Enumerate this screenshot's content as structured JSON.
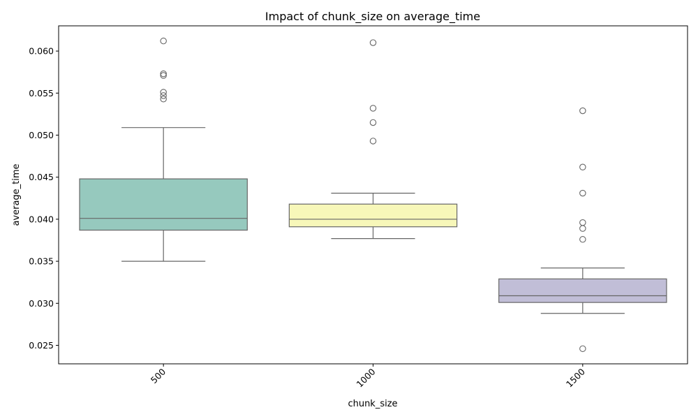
{
  "chart_data": {
    "type": "box",
    "title": "Impact of chunk_size on average_time",
    "xlabel": "chunk_size",
    "ylabel": "average_time",
    "ylim": [
      0.0228,
      0.063
    ],
    "yticks": [
      0.025,
      0.03,
      0.035,
      0.04,
      0.045,
      0.05,
      0.055,
      0.06
    ],
    "ytick_labels": [
      "0.025",
      "0.030",
      "0.035",
      "0.040",
      "0.045",
      "0.050",
      "0.055",
      "0.060"
    ],
    "grid": false,
    "categories": [
      "500",
      "1000",
      "1500"
    ],
    "boxes": [
      {
        "category": "500",
        "whisker_low": 0.035,
        "q1": 0.0387,
        "median": 0.0401,
        "q3": 0.0448,
        "whisker_high": 0.0509,
        "outliers": [
          0.0612,
          0.0573,
          0.0571,
          0.0551,
          0.0547,
          0.0543
        ],
        "color": "#96c9be"
      },
      {
        "category": "1000",
        "whisker_low": 0.0377,
        "q1": 0.0391,
        "median": 0.04,
        "q3": 0.0418,
        "whisker_high": 0.0431,
        "outliers": [
          0.061,
          0.0532,
          0.0515,
          0.0493
        ],
        "color": "#f7f7b9"
      },
      {
        "category": "1500",
        "whisker_low": 0.0288,
        "q1": 0.0301,
        "median": 0.0309,
        "q3": 0.0329,
        "whisker_high": 0.0342,
        "outliers": [
          0.0529,
          0.0462,
          0.0431,
          0.0396,
          0.0389,
          0.0376,
          0.0246
        ],
        "color": "#c1bed7"
      }
    ],
    "line_color": "#666666"
  }
}
